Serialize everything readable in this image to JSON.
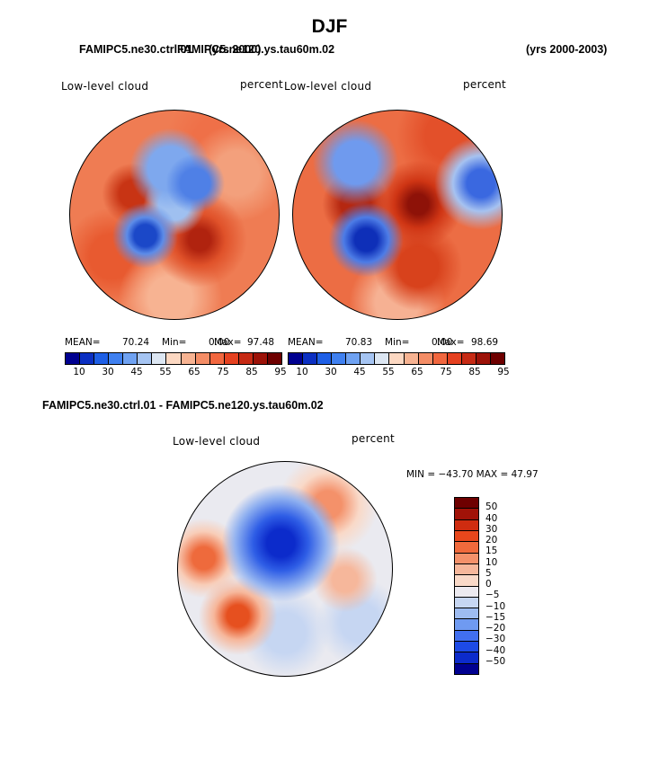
{
  "title": "DJF",
  "panel1": {
    "case": "FAMIPC5.ne30.ctrl.01",
    "years": "(yrs 2000)",
    "label": "Low-level cloud",
    "units": "percent",
    "stats": {
      "mean_label": "MEAN=",
      "mean": "70.24",
      "min_label": "Min=",
      "min": "0.00",
      "max_label": "Max=",
      "max": "97.48"
    }
  },
  "panel2": {
    "case": "FAMIPC5.ne120.ys.tau60m.02",
    "years": "(yrs 2000-2003)",
    "label": "Low-level cloud",
    "units": "percent",
    "stats": {
      "mean_label": "MEAN=",
      "mean": "70.83",
      "min_label": "Min=",
      "min": "0.00",
      "max_label": "Max=",
      "max": "98.69"
    }
  },
  "diff": {
    "title": "FAMIPC5.ne30.ctrl.01 - FAMIPC5.ne120.ys.tau60m.02",
    "label": "Low-level cloud",
    "units": "percent",
    "minmax": "MIN = −43.70  MAX =   47.97"
  },
  "colors": {
    "abs_colorbar": [
      "#000090",
      "#0b2fc2",
      "#1e5fe6",
      "#3f80f0",
      "#6fa2f2",
      "#a5c4f2",
      "#dce6f2",
      "#fcd8c2",
      "#f7b392",
      "#f48d66",
      "#f1673f",
      "#e54120",
      "#c62a14",
      "#9c1208",
      "#6e0000"
    ],
    "diff_colorbar": [
      "#6e0000",
      "#a11208",
      "#cf2c10",
      "#e8471c",
      "#f06a3c",
      "#f4916a",
      "#f6b79b",
      "#f9d9c8",
      "#eceaf0",
      "#c6d6f2",
      "#9ebcf1",
      "#6f9af1",
      "#416ff0",
      "#1d4ae6",
      "#0c2bcb",
      "#000090"
    ]
  },
  "chart_data": [
    {
      "type": "heatmap",
      "title": "Low-level cloud",
      "case": "FAMIPC5.ne30.ctrl.01",
      "units": "percent",
      "projection": "north polar stereographic",
      "mean": 70.24,
      "min": 0.0,
      "max": 97.48,
      "colorbar_levels": [
        10,
        30,
        45,
        55,
        65,
        75,
        85,
        95
      ]
    },
    {
      "type": "heatmap",
      "title": "Low-level cloud",
      "case": "FAMIPC5.ne120.ys.tau60m.02",
      "units": "percent",
      "projection": "north polar stereographic",
      "mean": 70.83,
      "min": 0.0,
      "max": 98.69,
      "colorbar_levels": [
        10,
        30,
        45,
        55,
        65,
        75,
        85,
        95
      ]
    },
    {
      "type": "heatmap",
      "title": "Low-level cloud",
      "case": "FAMIPC5.ne30.ctrl.01 - FAMIPC5.ne120.ys.tau60m.02",
      "units": "percent",
      "projection": "north polar stereographic",
      "min": -43.7,
      "max": 47.97,
      "colorbar_levels": [
        50,
        40,
        30,
        20,
        15,
        10,
        5,
        0,
        -5,
        -10,
        -15,
        -20,
        -30,
        -40,
        -50
      ]
    }
  ],
  "abs_ticks": [
    "10",
    "30",
    "45",
    "55",
    "65",
    "75",
    "85",
    "95"
  ],
  "diff_ticks": [
    "50",
    "40",
    "30",
    "20",
    "15",
    "10",
    "5",
    "0",
    "−5",
    "−10",
    "−15",
    "−20",
    "−30",
    "−40",
    "−50"
  ]
}
